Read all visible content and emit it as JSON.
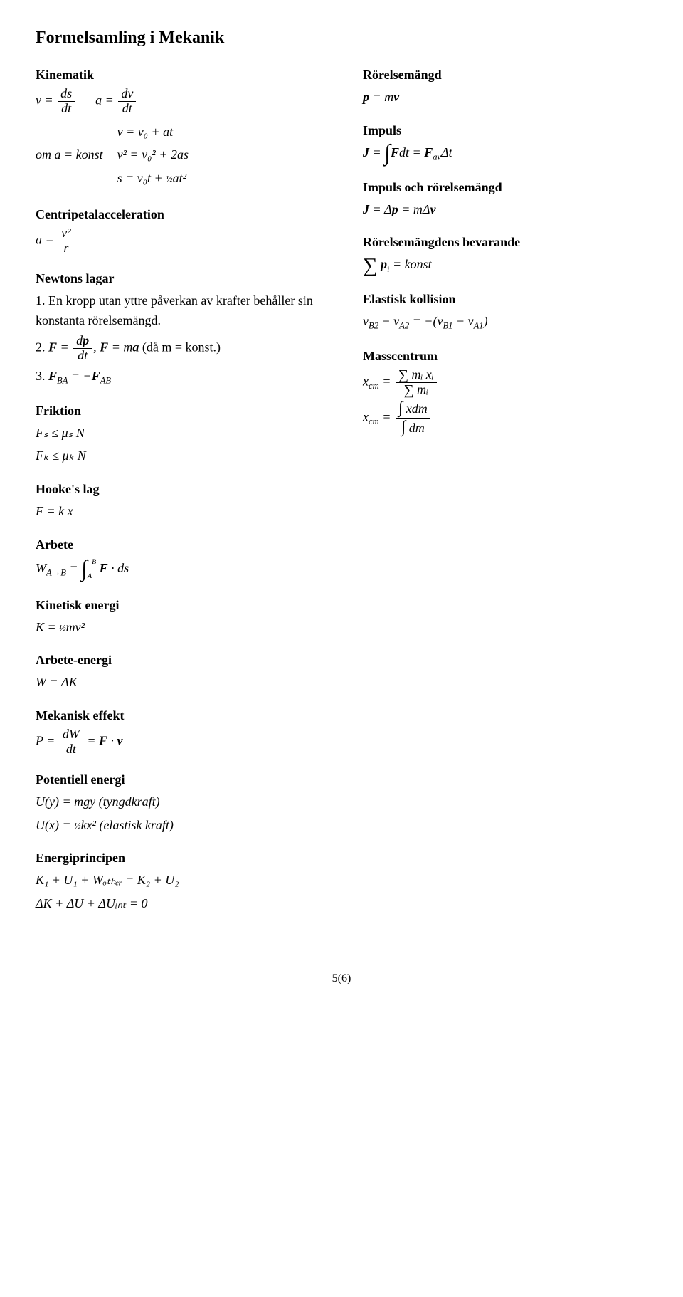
{
  "page_title": "Formelsamling i Mekanik",
  "footer": "5(6)",
  "left": {
    "kinematik": {
      "head": "Kinematik",
      "v_ds": {
        "lhs": "v =",
        "num": "ds",
        "den": "dt"
      },
      "a_dv": {
        "lhs": "a =",
        "num": "dv",
        "den": "dt"
      },
      "konst_label": "om a = konst",
      "eq1": "v = v₀ + at",
      "eq2": "v² = v₀² + 2as",
      "eq3_pre": "s = v₀t + ",
      "eq3_half": "½",
      "eq3_post": "at²"
    },
    "centripetal": {
      "head": "Centripetalacceleration",
      "lhs": "a =",
      "num": "v²",
      "den": "r"
    },
    "newton": {
      "head": "Newtons lagar",
      "law1": "1. En kropp utan yttre påverkan av krafter behåller sin konstanta rörelsemängd.",
      "law2_pre": "2. ",
      "law2_F": "F",
      "law2_eq": " = ",
      "law2_num": "dp",
      "law2_den": "dt",
      "law2_comma": ",  ",
      "law2_F2": "F",
      "law2_ma": " = m",
      "law2_a": "a",
      "law2_paren": " (då m = konst.)",
      "law3_pre": "3. ",
      "law3_F_BA": "F",
      "law3_BA": "BA",
      "law3_eq": " = −",
      "law3_F_AB": "F",
      "law3_AB": "AB"
    },
    "friktion": {
      "head": "Friktion",
      "eq1": "Fₛ ≤ μₛ N",
      "eq2": "Fₖ ≤ μₖ N"
    },
    "hooke": {
      "head": "Hooke's lag",
      "eq": "F = k  x"
    },
    "arbete": {
      "head": "Arbete",
      "lhs": "W",
      "sub": "A→B",
      "eq": " = ",
      "limA": "A",
      "limB": "B",
      "F": "F",
      "dot": " · d",
      "s": "s"
    },
    "kinetisk": {
      "head": "Kinetisk energi",
      "pre": "K = ",
      "half": "½",
      "post": "mv²"
    },
    "arbete_energi": {
      "head": "Arbete-energi",
      "eq": "W = ΔK"
    },
    "effekt": {
      "head": "Mekanisk effekt",
      "lhs": "P = ",
      "num": "dW",
      "den": "dt",
      "eq2": " = ",
      "F": "F",
      "dot": " · ",
      "v": "v"
    },
    "potentiell": {
      "head": "Potentiell energi",
      "eq1": "U(y) = mgy  (tyngdkraft)",
      "eq2_pre": "U(x) = ",
      "eq2_half": "½",
      "eq2_mid": "kx²  (elastisk kraft)"
    },
    "energiprincipen": {
      "head": "Energiprincipen",
      "eq1": "K₁ + U₁ + Wₒₜₕₑᵣ = K₂ + U₂",
      "eq2": "ΔK + ΔU + ΔUᵢₙₜ = 0"
    }
  },
  "right": {
    "rorelsemangd": {
      "head": "Rörelsemängd",
      "eq_lhs": "p",
      "eq_mid": " = m",
      "eq_v": "v"
    },
    "impuls": {
      "head": "Impuls",
      "lhs": "J",
      "eq1": " = ",
      "F": "F",
      "dt": "dt = ",
      "Fav": "F",
      "av": "av",
      "Dt": "Δt"
    },
    "impuls_rorelse": {
      "head": "Impuls och rörelsemängd",
      "lhs": "J",
      "eq": " = Δ",
      "p": "p",
      "eq2": " = mΔ",
      "v": "v"
    },
    "bevarande": {
      "head": "Rörelsemängdens bevarande",
      "p": "p",
      "i": "i",
      "konst": " = konst"
    },
    "elastisk": {
      "head": "Elastisk kollision",
      "eq": "v_B2 − v_A2 = −(v_B1 − v_A1)"
    },
    "masscentrum": {
      "head": "Masscentrum",
      "x_cm": "x",
      "cm": "cm",
      "eq": " = ",
      "num1_sum": "∑",
      "num1": "mᵢ xᵢ",
      "den1_sum": "∑",
      "den1": "mᵢ",
      "num2_int": "∫",
      "num2": "xdm",
      "den2_int": "∫",
      "den2": "dm"
    }
  }
}
